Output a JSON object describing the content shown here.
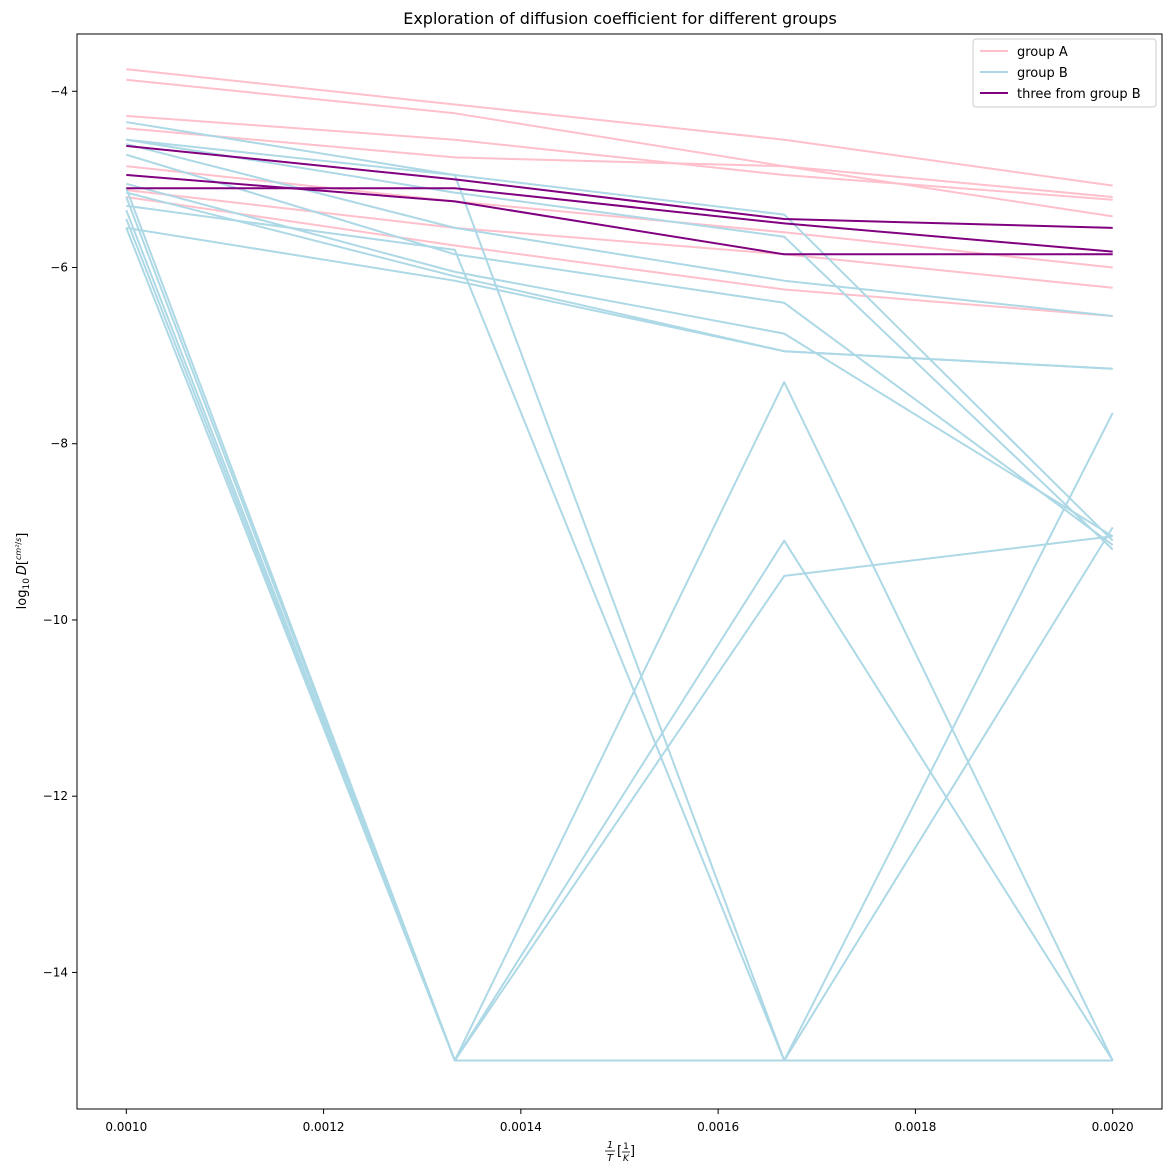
{
  "chart_data": {
    "type": "line",
    "title": "Exploration of diffusion coefficient for different groups",
    "xlabel_num": "1",
    "xlabel_den": "T",
    "xlabel_unit_num": "1",
    "xlabel_unit_den": "K",
    "ylabel_prefix": "log",
    "ylabel_sub": "10",
    "ylabel_var": "D",
    "ylabel_unit_num": "cm²",
    "ylabel_unit_den": "s",
    "xlim": [
      0.00095,
      0.00205
    ],
    "ylim": [
      -15.55,
      -3.35
    ],
    "grid": false,
    "legend_position": "top-right",
    "x": [
      0.001,
      0.001333,
      0.001667,
      0.002
    ],
    "xticks": [
      0.001,
      0.0012,
      0.0014,
      0.0016,
      0.0018,
      0.002
    ],
    "xtick_labels": [
      "0.0010",
      "0.0012",
      "0.0014",
      "0.0016",
      "0.0018",
      "0.0020"
    ],
    "yticks": [
      -14,
      -12,
      -10,
      -8,
      -6,
      -4
    ],
    "ytick_labels": [
      "−14",
      "−12",
      "−10",
      "−8",
      "−6",
      "−4"
    ],
    "colors": {
      "group_a": "#ffc0cb",
      "group_b": "#add8e6",
      "three_b": "#800080"
    },
    "legend": [
      {
        "label": "group A",
        "color": "#ffc0cb"
      },
      {
        "label": "group B",
        "color": "#add8e6"
      },
      {
        "label": "three from group B",
        "color": "#800080"
      }
    ],
    "series": [
      {
        "group": "group A",
        "values": [
          -3.75,
          -4.15,
          -4.55,
          -5.07
        ]
      },
      {
        "group": "group A",
        "values": [
          -3.87,
          -4.25,
          -4.85,
          -5.2
        ]
      },
      {
        "group": "group A",
        "values": [
          -4.28,
          -4.55,
          -4.95,
          -5.23
        ]
      },
      {
        "group": "group A",
        "values": [
          -4.42,
          -4.75,
          -4.85,
          -5.42
        ]
      },
      {
        "group": "group A",
        "values": [
          -4.85,
          -5.25,
          -5.6,
          -6.0
        ]
      },
      {
        "group": "group A",
        "values": [
          -5.12,
          -5.55,
          -5.85,
          -6.23
        ]
      },
      {
        "group": "group A",
        "values": [
          -5.2,
          -5.75,
          -6.25,
          -6.55
        ]
      },
      {
        "group": "group B",
        "values": [
          -4.35,
          -4.95,
          -5.4,
          -9.1
        ]
      },
      {
        "group": "group B",
        "values": [
          -4.55,
          -5.15,
          -5.65,
          -9.2
        ]
      },
      {
        "group": "group B",
        "values": [
          -4.6,
          -5.55,
          -6.15,
          -6.55
        ]
      },
      {
        "group": "group B",
        "values": [
          -4.72,
          -5.85,
          -6.4,
          -9.15
        ]
      },
      {
        "group": "group B",
        "values": [
          -5.05,
          -6.05,
          -6.75,
          -9.05
        ]
      },
      {
        "group": "group B",
        "values": [
          -5.15,
          -6.1,
          -6.95,
          -7.15
        ]
      },
      {
        "group": "group B",
        "values": [
          -5.55,
          -6.15,
          -6.95,
          -7.15
        ]
      },
      {
        "group": "group B",
        "values": [
          -5.1,
          -15.0,
          -15.0,
          -7.65
        ]
      },
      {
        "group": "group B",
        "values": [
          -5.2,
          -15.0,
          -9.1,
          -15.0
        ]
      },
      {
        "group": "group B",
        "values": [
          -5.35,
          -15.0,
          -15.0,
          -8.95
        ]
      },
      {
        "group": "group B",
        "values": [
          -5.45,
          -15.0,
          -9.5,
          -9.05
        ]
      },
      {
        "group": "group B",
        "values": [
          -5.55,
          -15.0,
          -7.3,
          -15.0
        ]
      },
      {
        "group": "group B",
        "values": [
          -4.55,
          -4.95,
          -15.0,
          -15.0
        ]
      },
      {
        "group": "group B",
        "values": [
          -5.3,
          -5.8,
          -15.0,
          -15.0
        ]
      },
      {
        "group": "three from group B",
        "values": [
          -4.62,
          -5.0,
          -5.45,
          -5.55
        ]
      },
      {
        "group": "three from group B",
        "values": [
          -4.95,
          -5.25,
          -5.85,
          -5.85
        ]
      },
      {
        "group": "three from group B",
        "values": [
          -5.1,
          -5.1,
          -5.5,
          -5.82
        ]
      }
    ]
  }
}
